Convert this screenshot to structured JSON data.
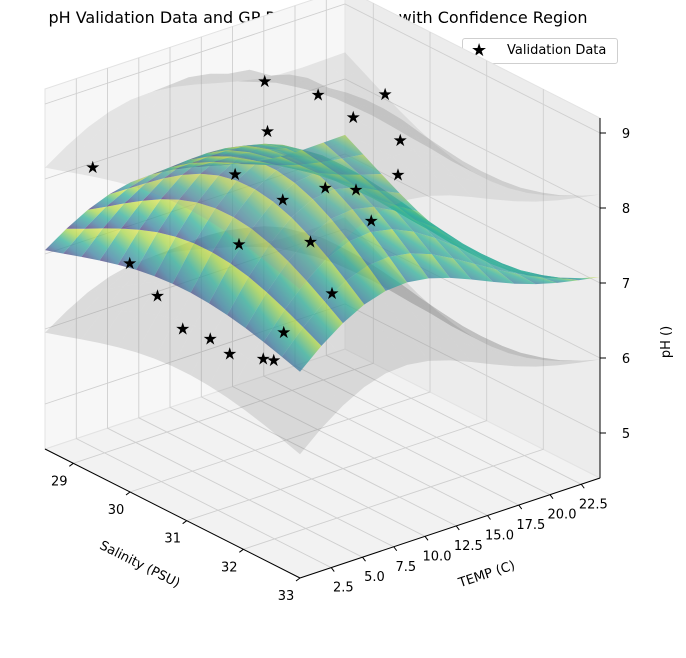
{
  "chart_data": {
    "type": "surface3d",
    "title": "pH Validation Data and GP Prediction Mean with Confidence Region",
    "xlabel": "Salinity (PSU)",
    "ylabel": "TEMP (C)",
    "zlabel": "pH ()",
    "x_ticks": [
      "29",
      "30",
      "31",
      "32",
      "33"
    ],
    "y_ticks": [
      "2.5",
      "5.0",
      "7.5",
      "10.0",
      "12.5",
      "15.0",
      "17.5",
      "20.0",
      "22.5"
    ],
    "z_ticks": [
      "5",
      "6",
      "7",
      "8",
      "9"
    ],
    "xlim": [
      28.5,
      33
    ],
    "ylim": [
      0,
      24
    ],
    "zlim": [
      4.4,
      9.2
    ],
    "grid": true,
    "legend_position": "top-right",
    "legend": [
      {
        "name": "Validation Data",
        "marker": "star",
        "color": "#000000"
      }
    ],
    "surface_colormap": "viridis",
    "confidence_color": "#808080",
    "validation_points": [
      {
        "x": 28.9,
        "y": 2.0,
        "z": 8.2
      },
      {
        "x": 29.6,
        "y": 1.8,
        "z": 7.2
      },
      {
        "x": 30.0,
        "y": 2.2,
        "z": 6.9
      },
      {
        "x": 30.4,
        "y": 2.4,
        "z": 6.6
      },
      {
        "x": 30.8,
        "y": 2.8,
        "z": 6.6
      },
      {
        "x": 31.1,
        "y": 3.0,
        "z": 6.5
      },
      {
        "x": 31.6,
        "y": 3.4,
        "z": 6.6
      },
      {
        "x": 31.7,
        "y": 3.8,
        "z": 6.6
      },
      {
        "x": 31.5,
        "y": 5.5,
        "z": 6.8
      },
      {
        "x": 30.6,
        "y": 6.0,
        "z": 7.6
      },
      {
        "x": 30.2,
        "y": 7.5,
        "z": 8.3
      },
      {
        "x": 30.6,
        "y": 9.5,
        "z": 8.0
      },
      {
        "x": 30.0,
        "y": 11.0,
        "z": 8.6
      },
      {
        "x": 30.8,
        "y": 12.0,
        "z": 8.1
      },
      {
        "x": 29.4,
        "y": 13.5,
        "z": 8.9
      },
      {
        "x": 29.9,
        "y": 15.5,
        "z": 8.8
      },
      {
        "x": 30.3,
        "y": 16.5,
        "z": 8.6
      },
      {
        "x": 30.9,
        "y": 14.0,
        "z": 8.0
      },
      {
        "x": 31.2,
        "y": 9.0,
        "z": 7.7
      },
      {
        "x": 31.8,
        "y": 8.0,
        "z": 7.3
      },
      {
        "x": 30.8,
        "y": 18.0,
        "z": 8.4
      },
      {
        "x": 31.5,
        "y": 12.5,
        "z": 7.9
      },
      {
        "x": 31.2,
        "y": 16.0,
        "z": 8.2
      },
      {
        "x": 30.2,
        "y": 19.5,
        "z": 8.7
      }
    ]
  },
  "legend_marker": "★"
}
